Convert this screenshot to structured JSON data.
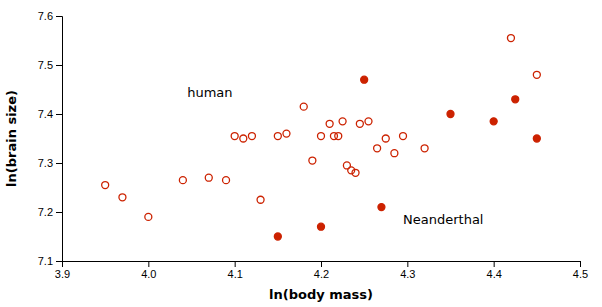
{
  "chart_data": {
    "type": "scatter",
    "xlabel": "ln(body mass)",
    "ylabel": "ln(brain size)",
    "xlim": [
      3.9,
      4.5
    ],
    "ylim": [
      7.1,
      7.6
    ],
    "xticks": [
      3.9,
      {
        "value": 4.0,
        "label": "4.0"
      },
      4.1,
      4.2,
      4.3,
      4.4,
      4.5
    ],
    "yticks": [
      7.1,
      7.2,
      7.3,
      7.4,
      7.5,
      7.6
    ],
    "grid": false,
    "series": [
      {
        "color": "#cc2200",
        "marker": "circle-open",
        "x": [
          3.95,
          3.97,
          4.0,
          4.04,
          4.07,
          4.09,
          4.1,
          4.11,
          4.12,
          4.13,
          4.15,
          4.16,
          4.18,
          4.19,
          4.2,
          4.21,
          4.215,
          4.22,
          4.225,
          4.23,
          4.235,
          4.24,
          4.245,
          4.255,
          4.265,
          4.275,
          4.285,
          4.295,
          4.32,
          4.42,
          4.45
        ],
        "values": [
          7.255,
          7.23,
          7.19,
          7.265,
          7.27,
          7.265,
          7.355,
          7.35,
          7.355,
          7.225,
          7.355,
          7.36,
          7.415,
          7.305,
          7.355,
          7.38,
          7.355,
          7.355,
          7.385,
          7.295,
          7.285,
          7.28,
          7.38,
          7.385,
          7.33,
          7.35,
          7.32,
          7.355,
          7.33,
          7.555,
          7.48
        ]
      },
      {
        "color": "#cc2200",
        "marker": "circle",
        "x": [
          4.15,
          4.2,
          4.25,
          4.27,
          4.35,
          4.4,
          4.425,
          4.45
        ],
        "values": [
          7.15,
          7.17,
          7.47,
          7.21,
          7.4,
          7.385,
          7.43,
          7.35
        ]
      }
    ],
    "annotations": [
      {
        "text": "human",
        "x": 4.045,
        "y": 7.435
      },
      {
        "text": "Neanderthal",
        "x": 4.295,
        "y": 7.175
      }
    ]
  }
}
